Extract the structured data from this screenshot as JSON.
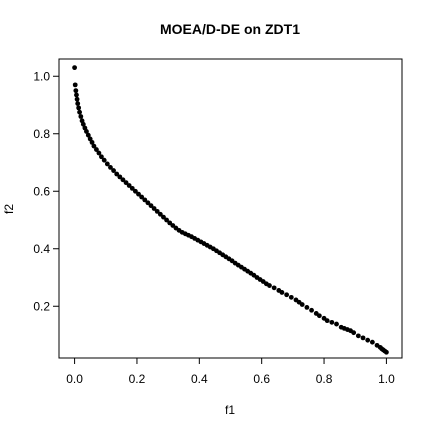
{
  "chart_data": {
    "type": "scatter",
    "title": "MOEA/D-DE on ZDT1",
    "xlabel": "f1",
    "ylabel": "f2",
    "xlim": [
      -0.05,
      1.05
    ],
    "ylim": [
      0.02,
      1.06
    ],
    "xticks": [
      "0.0",
      "0.2",
      "0.4",
      "0.6",
      "0.8",
      "1.0"
    ],
    "yticks": [
      "0.2",
      "0.4",
      "0.6",
      "0.8",
      "1.0"
    ],
    "grid": false,
    "point_color": "#000000",
    "series": [
      {
        "points": [
          [
            0.0,
            1.03
          ],
          [
            0.002,
            0.97
          ],
          [
            0.004,
            0.95
          ],
          [
            0.006,
            0.935
          ],
          [
            0.008,
            0.92
          ],
          [
            0.01,
            0.905
          ],
          [
            0.013,
            0.89
          ],
          [
            0.016,
            0.875
          ],
          [
            0.02,
            0.86
          ],
          [
            0.024,
            0.845
          ],
          [
            0.028,
            0.833
          ],
          [
            0.033,
            0.82
          ],
          [
            0.038,
            0.808
          ],
          [
            0.044,
            0.795
          ],
          [
            0.05,
            0.782
          ],
          [
            0.056,
            0.77
          ],
          [
            0.062,
            0.757
          ],
          [
            0.07,
            0.745
          ],
          [
            0.078,
            0.733
          ],
          [
            0.086,
            0.72
          ],
          [
            0.095,
            0.708
          ],
          [
            0.105,
            0.695
          ],
          [
            0.115,
            0.683
          ],
          [
            0.125,
            0.672
          ],
          [
            0.135,
            0.66
          ],
          [
            0.145,
            0.65
          ],
          [
            0.155,
            0.64
          ],
          [
            0.165,
            0.63
          ],
          [
            0.175,
            0.62
          ],
          [
            0.185,
            0.61
          ],
          [
            0.195,
            0.6
          ],
          [
            0.205,
            0.59
          ],
          [
            0.215,
            0.58
          ],
          [
            0.225,
            0.57
          ],
          [
            0.235,
            0.56
          ],
          [
            0.245,
            0.55
          ],
          [
            0.255,
            0.54
          ],
          [
            0.265,
            0.53
          ],
          [
            0.275,
            0.52
          ],
          [
            0.285,
            0.51
          ],
          [
            0.295,
            0.5
          ],
          [
            0.305,
            0.49
          ],
          [
            0.315,
            0.481
          ],
          [
            0.325,
            0.472
          ],
          [
            0.335,
            0.464
          ],
          [
            0.345,
            0.457
          ],
          [
            0.355,
            0.452
          ],
          [
            0.365,
            0.447
          ],
          [
            0.375,
            0.442
          ],
          [
            0.385,
            0.436
          ],
          [
            0.395,
            0.43
          ],
          [
            0.405,
            0.424
          ],
          [
            0.415,
            0.418
          ],
          [
            0.425,
            0.412
          ],
          [
            0.435,
            0.406
          ],
          [
            0.445,
            0.4
          ],
          [
            0.455,
            0.393
          ],
          [
            0.465,
            0.386
          ],
          [
            0.475,
            0.379
          ],
          [
            0.485,
            0.372
          ],
          [
            0.495,
            0.365
          ],
          [
            0.505,
            0.358
          ],
          [
            0.515,
            0.35
          ],
          [
            0.525,
            0.343
          ],
          [
            0.535,
            0.336
          ],
          [
            0.545,
            0.329
          ],
          [
            0.555,
            0.322
          ],
          [
            0.565,
            0.315
          ],
          [
            0.575,
            0.308
          ],
          [
            0.585,
            0.3
          ],
          [
            0.595,
            0.293
          ],
          [
            0.605,
            0.286
          ],
          [
            0.615,
            0.278
          ],
          [
            0.625,
            0.272
          ],
          [
            0.64,
            0.264
          ],
          [
            0.655,
            0.255
          ],
          [
            0.665,
            0.248
          ],
          [
            0.68,
            0.24
          ],
          [
            0.695,
            0.231
          ],
          [
            0.71,
            0.222
          ],
          [
            0.72,
            0.214
          ],
          [
            0.73,
            0.206
          ],
          [
            0.745,
            0.196
          ],
          [
            0.76,
            0.186
          ],
          [
            0.775,
            0.175
          ],
          [
            0.785,
            0.167
          ],
          [
            0.8,
            0.158
          ],
          [
            0.81,
            0.15
          ],
          [
            0.825,
            0.144
          ],
          [
            0.84,
            0.138
          ],
          [
            0.855,
            0.127
          ],
          [
            0.865,
            0.123
          ],
          [
            0.875,
            0.119
          ],
          [
            0.885,
            0.115
          ],
          [
            0.895,
            0.108
          ],
          [
            0.91,
            0.097
          ],
          [
            0.925,
            0.09
          ],
          [
            0.94,
            0.082
          ],
          [
            0.955,
            0.075
          ],
          [
            0.97,
            0.064
          ],
          [
            0.98,
            0.057
          ],
          [
            0.985,
            0.052
          ],
          [
            0.99,
            0.048
          ],
          [
            0.995,
            0.044
          ],
          [
            1.0,
            0.04
          ]
        ]
      }
    ]
  }
}
